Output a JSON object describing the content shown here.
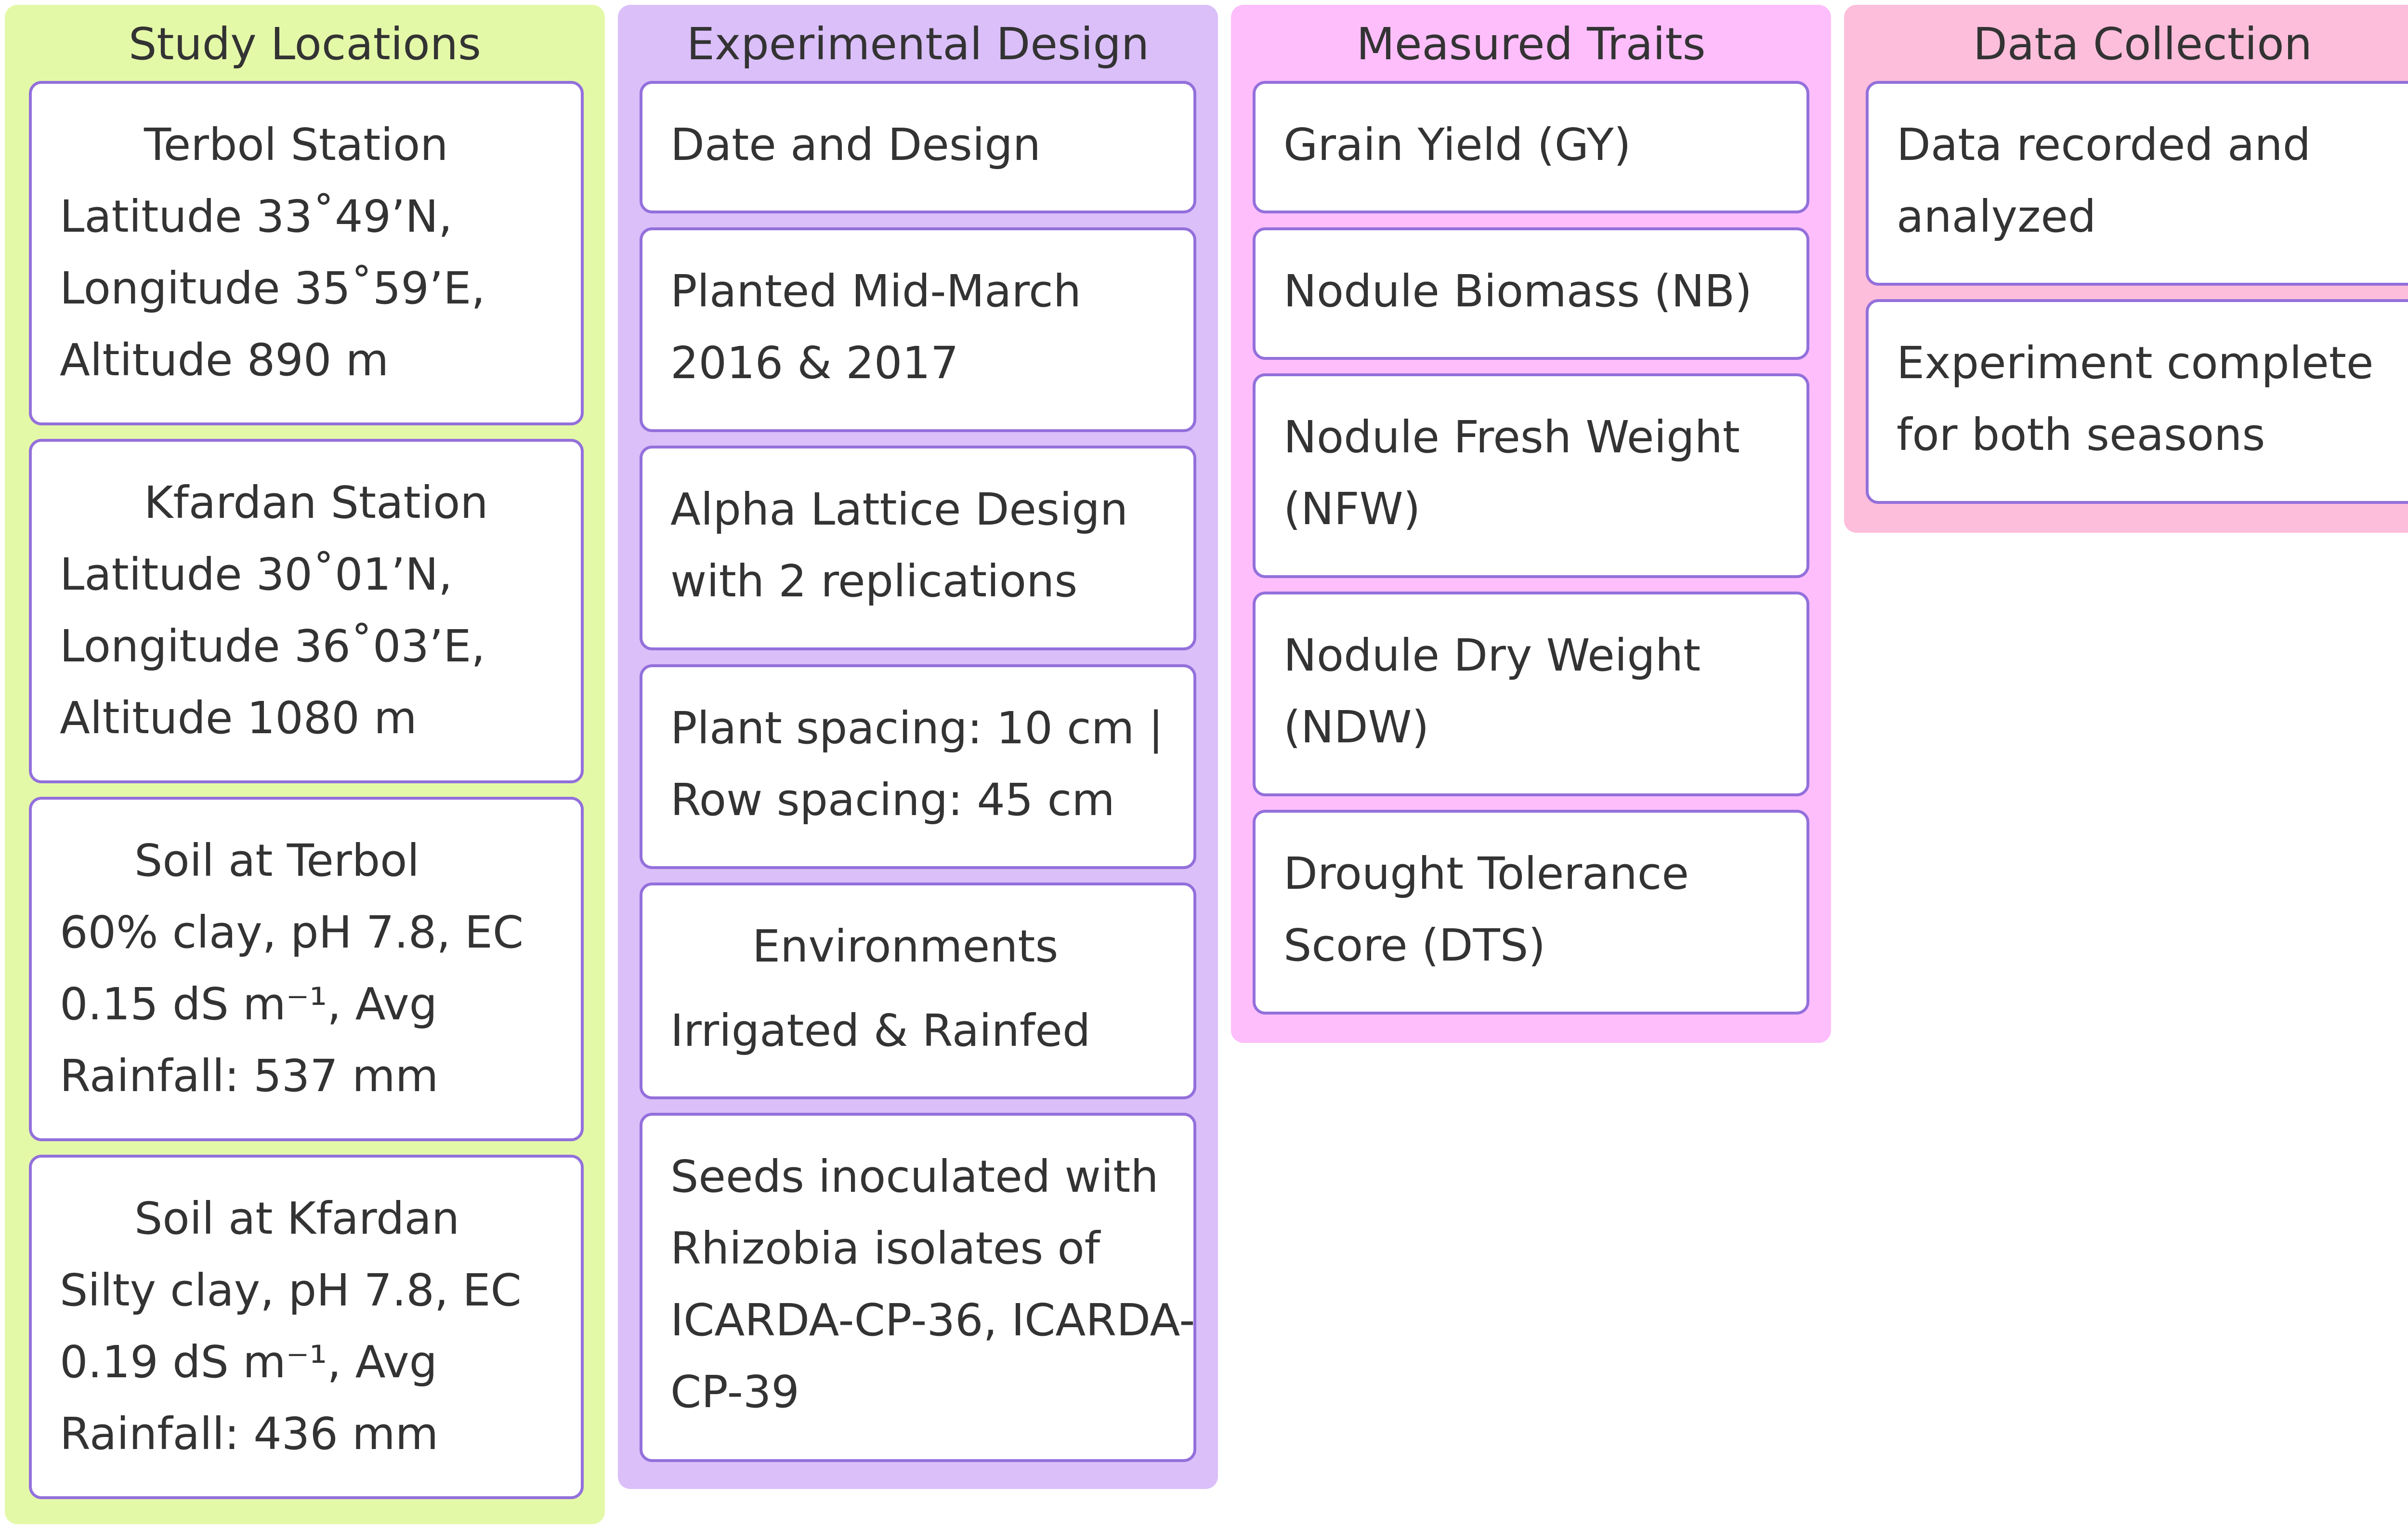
{
  "columns": {
    "study": {
      "title": "Study Locations",
      "cards": [
        {
          "heading": "Terbol Station",
          "lines": [
            "Latitude 33˚49’N,",
            "Longitude 35˚59’E,",
            "Altitude 890 m"
          ]
        },
        {
          "heading": "Kfardan Station",
          "lines": [
            "Latitude 30˚01’N,",
            "Longitude 36˚03’E,",
            "Altitude 1080 m"
          ]
        },
        {
          "heading": "Soil at Terbol",
          "lines": [
            "60% clay, pH 7.8, EC",
            "0.15 dS m⁻¹, Avg",
            "Rainfall: 537 mm"
          ]
        },
        {
          "heading": "Soil at Kfardan",
          "lines": [
            "Silty clay, pH 7.8, EC",
            "0.19 dS m⁻¹, Avg",
            "Rainfall: 436 mm"
          ]
        }
      ]
    },
    "design": {
      "title": "Experimental Design",
      "cards": [
        {
          "lines": [
            "Date and Design"
          ]
        },
        {
          "lines": [
            "Planted Mid-March",
            "2016 & 2017"
          ]
        },
        {
          "lines": [
            "Alpha Lattice Design",
            "with 2 replications"
          ]
        },
        {
          "lines": [
            "Plant spacing: 10 cm |",
            "Row spacing: 45 cm"
          ]
        },
        {
          "heading": "Environments",
          "lines": [
            "Irrigated & Rainfed"
          ]
        },
        {
          "lines": [
            "Seeds inoculated with",
            "Rhizobia isolates of",
            "ICARDA-CP-36, ICARDA-",
            "CP-39"
          ]
        }
      ]
    },
    "traits": {
      "title": "Measured Traits",
      "cards": [
        {
          "lines": [
            "Grain Yield (GY)"
          ]
        },
        {
          "lines": [
            "Nodule Biomass (NB)"
          ]
        },
        {
          "lines": [
            "Nodule Fresh Weight",
            "(NFW)"
          ]
        },
        {
          "lines": [
            "Nodule Dry Weight",
            "(NDW)"
          ]
        },
        {
          "lines": [
            "Drought Tolerance",
            "Score (DTS)"
          ]
        }
      ]
    },
    "collect": {
      "title": "Data Collection",
      "cards": [
        {
          "lines": [
            "Data recorded and",
            "analyzed"
          ]
        },
        {
          "lines": [
            "Experiment complete",
            "for both seasons"
          ]
        }
      ]
    }
  },
  "colors": {
    "study_bg": "#e4f9a8",
    "design_bg": "#dabff9",
    "traits_bg": "#fdbefb",
    "collect_bg": "#fcbedb",
    "card_border": "#9370db",
    "text": "#333333"
  }
}
